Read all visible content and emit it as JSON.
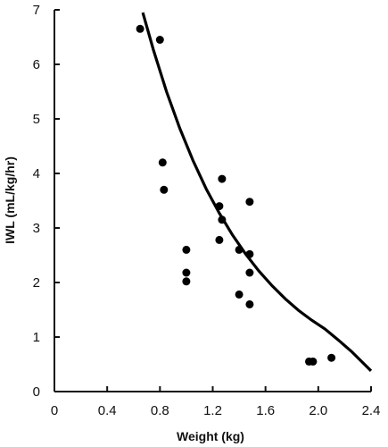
{
  "chart_data": {
    "type": "scatter",
    "xlabel": "Weight (kg)",
    "ylabel": "IWL (mL/kg/hr)",
    "xlim": [
      0,
      2.4
    ],
    "ylim": [
      0,
      7
    ],
    "x_ticks": [
      "0",
      "0.4",
      "0.8",
      "1.2",
      "1.6",
      "2.0",
      "2.4"
    ],
    "x_tick_values": [
      0,
      0.4,
      0.8,
      1.2,
      1.6,
      2.0,
      2.4
    ],
    "y_ticks": [
      "0",
      "1",
      "2",
      "3",
      "4",
      "5",
      "6",
      "7"
    ],
    "y_tick_values": [
      0,
      1,
      2,
      3,
      4,
      5,
      6,
      7
    ],
    "grid": false,
    "series": [
      {
        "type": "scatter",
        "points": [
          [
            0.65,
            6.65
          ],
          [
            0.8,
            6.45
          ],
          [
            0.82,
            4.2
          ],
          [
            0.83,
            3.7
          ],
          [
            1.0,
            2.6
          ],
          [
            1.0,
            2.18
          ],
          [
            1.0,
            2.02
          ],
          [
            1.25,
            2.78
          ],
          [
            1.25,
            3.4
          ],
          [
            1.27,
            3.9
          ],
          [
            1.27,
            3.15
          ],
          [
            1.4,
            2.6
          ],
          [
            1.4,
            1.78
          ],
          [
            1.48,
            3.48
          ],
          [
            1.48,
            2.52
          ],
          [
            1.48,
            2.18
          ],
          [
            1.48,
            1.6
          ],
          [
            1.93,
            0.55
          ],
          [
            1.96,
            0.55
          ],
          [
            2.1,
            0.62
          ]
        ]
      },
      {
        "type": "line",
        "points": [
          [
            0.67,
            6.95
          ],
          [
            0.75,
            6.27
          ],
          [
            0.85,
            5.5
          ],
          [
            0.95,
            4.83
          ],
          [
            1.05,
            4.24
          ],
          [
            1.15,
            3.72
          ],
          [
            1.25,
            3.27
          ],
          [
            1.35,
            2.87
          ],
          [
            1.45,
            2.52
          ],
          [
            1.55,
            2.21
          ],
          [
            1.65,
            1.94
          ],
          [
            1.75,
            1.7
          ],
          [
            1.85,
            1.49
          ],
          [
            1.95,
            1.31
          ],
          [
            2.05,
            1.15
          ],
          [
            2.15,
            0.95
          ],
          [
            2.25,
            0.74
          ],
          [
            2.35,
            0.5
          ],
          [
            2.4,
            0.38
          ]
        ]
      }
    ]
  }
}
